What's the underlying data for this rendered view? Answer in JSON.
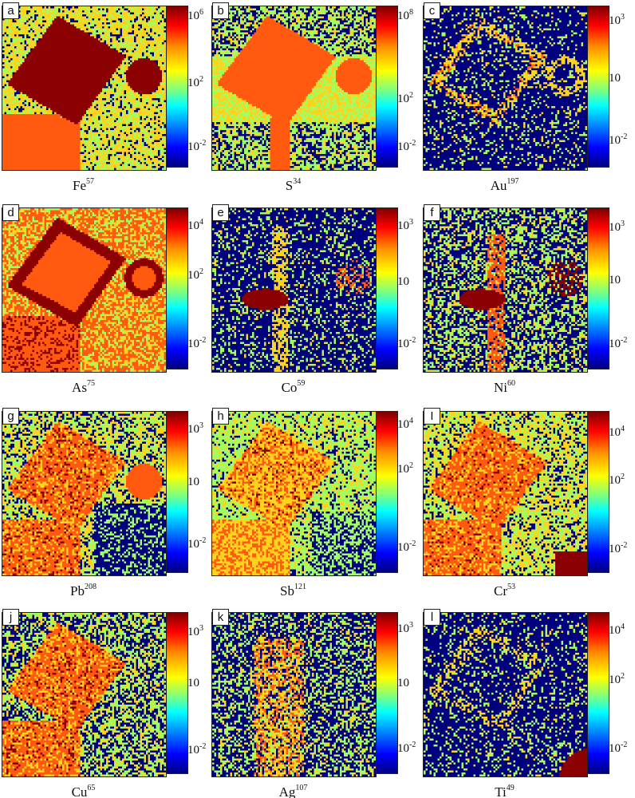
{
  "panels": [
    {
      "letter": "a",
      "element": "Fe",
      "mass": "57",
      "ticks": [
        [
          "10",
          "6"
        ],
        [
          "10",
          "2"
        ],
        [
          "10",
          "-2"
        ]
      ],
      "map_kind": "fe"
    },
    {
      "letter": "b",
      "element": "S",
      "mass": "34",
      "ticks": [
        [
          "10",
          "8"
        ],
        [
          "10",
          "2"
        ],
        [
          "10",
          "-2"
        ]
      ],
      "map_kind": "s"
    },
    {
      "letter": "c",
      "element": "Au",
      "mass": "197",
      "ticks": [
        [
          "10",
          "3"
        ],
        [
          "10",
          ""
        ],
        [
          "10",
          "-2"
        ]
      ],
      "map_kind": "au"
    },
    {
      "letter": "d",
      "element": "As",
      "mass": "75",
      "ticks": [
        [
          "10",
          "4"
        ],
        [
          "10",
          "2"
        ],
        [
          "10",
          "-2"
        ]
      ],
      "map_kind": "as"
    },
    {
      "letter": "e",
      "element": "Co",
      "mass": "59",
      "ticks": [
        [
          "10",
          "3"
        ],
        [
          "10",
          ""
        ],
        [
          "10",
          "-2"
        ]
      ],
      "map_kind": "co"
    },
    {
      "letter": "f",
      "element": "Ni",
      "mass": "60",
      "ticks": [
        [
          "10",
          "3"
        ],
        [
          "10",
          ""
        ],
        [
          "10",
          "-2"
        ]
      ],
      "map_kind": "ni"
    },
    {
      "letter": "g",
      "element": "Pb",
      "mass": "208",
      "ticks": [
        [
          "10",
          "3"
        ],
        [
          "10",
          ""
        ],
        [
          "10",
          "-2"
        ]
      ],
      "map_kind": "pb"
    },
    {
      "letter": "h",
      "element": "Sb",
      "mass": "121",
      "ticks": [
        [
          "10",
          "4"
        ],
        [
          "10",
          "2"
        ],
        [
          "10",
          "-2"
        ]
      ],
      "map_kind": "sb"
    },
    {
      "letter": "I",
      "element": "Cr",
      "mass": "53",
      "ticks": [
        [
          "10",
          "4"
        ],
        [
          "10",
          "2"
        ],
        [
          "10",
          "-2"
        ]
      ],
      "map_kind": "cr"
    },
    {
      "letter": "j",
      "element": "Cu",
      "mass": "65",
      "ticks": [
        [
          "10",
          "3"
        ],
        [
          "10",
          ""
        ],
        [
          "10",
          "-2"
        ]
      ],
      "map_kind": "cu"
    },
    {
      "letter": "k",
      "element": "Ag",
      "mass": "107",
      "ticks": [
        [
          "10",
          "3"
        ],
        [
          "10",
          ""
        ],
        [
          "10",
          "-2"
        ]
      ],
      "map_kind": "ag"
    },
    {
      "letter": "l",
      "element": "Ti",
      "mass": "49",
      "ticks": [
        [
          "10",
          "4"
        ],
        [
          "10",
          "2"
        ],
        [
          "10",
          "-2"
        ]
      ],
      "map_kind": "ti"
    }
  ],
  "colors": {
    "dark_red": "#8b0000",
    "orange_red": "#ff5a10",
    "yellow": "#ffd21e",
    "green": "#a0ff60",
    "navy": "#00007f"
  }
}
